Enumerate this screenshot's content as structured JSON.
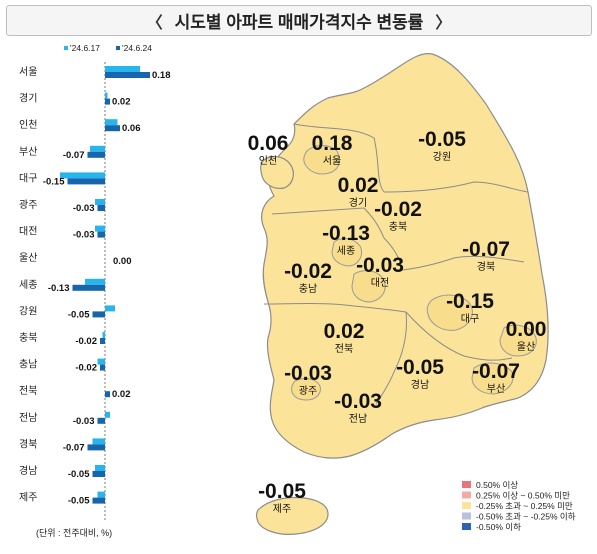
{
  "title": "시도별 아파트 매매가격지수 변동률",
  "icons": {
    "left": "chevron-left-icon",
    "right": "chevron-right-icon"
  },
  "colors": {
    "prev_week": "#28b4ec",
    "this_week": "#1766ad",
    "map_fill": "#fbe39a",
    "legend_ge_050": "#e8757b",
    "legend_025_050": "#f4a9a2",
    "legend_neutral": "#fbe39a",
    "legend_neg_025_050": "#b9c2dc",
    "legend_le_neg050": "#2f62b4"
  },
  "chart_data": {
    "type": "bar",
    "orientation": "horizontal",
    "categories": [
      "서울",
      "경기",
      "인천",
      "부산",
      "대구",
      "광주",
      "대전",
      "울산",
      "세종",
      "강원",
      "충북",
      "충남",
      "전북",
      "전남",
      "경북",
      "경남",
      "제주"
    ],
    "series": [
      {
        "name": "'24.6.17",
        "values": [
          0.14,
          0.01,
          0.05,
          -0.06,
          -0.18,
          -0.04,
          -0.04,
          0.0,
          -0.08,
          0.04,
          -0.01,
          -0.03,
          0.0,
          0.02,
          -0.05,
          -0.04,
          -0.03
        ]
      },
      {
        "name": "'24.6.24",
        "values": [
          0.18,
          0.02,
          0.06,
          -0.07,
          -0.15,
          -0.03,
          -0.03,
          0.0,
          -0.13,
          -0.05,
          -0.02,
          -0.02,
          0.02,
          -0.03,
          -0.07,
          -0.05,
          -0.05
        ]
      }
    ],
    "value_labels": [
      "0.18",
      "0.02",
      "0.06",
      "-0.07",
      "-0.15",
      "-0.03",
      "-0.03",
      "0.00",
      "-0.13",
      "-0.05",
      "-0.02",
      "-0.02",
      "0.02",
      "-0.03",
      "-0.07",
      "-0.05",
      "-0.05"
    ],
    "xlim": [
      -0.2,
      0.2
    ],
    "unit_note": "(단위 : 전주대비, %)"
  },
  "map": {
    "regions": [
      {
        "name": "인천",
        "value": "0.06"
      },
      {
        "name": "서울",
        "value": "0.18"
      },
      {
        "name": "강원",
        "value": "-0.05"
      },
      {
        "name": "경기",
        "value": "0.02"
      },
      {
        "name": "충북",
        "value": "-0.02"
      },
      {
        "name": "세종",
        "value": "-0.13"
      },
      {
        "name": "대전",
        "value": "-0.03"
      },
      {
        "name": "충남",
        "value": "-0.02"
      },
      {
        "name": "경북",
        "value": "-0.07"
      },
      {
        "name": "대구",
        "value": "-0.15"
      },
      {
        "name": "울산",
        "value": "0.00"
      },
      {
        "name": "전북",
        "value": "0.02"
      },
      {
        "name": "광주",
        "value": "-0.03"
      },
      {
        "name": "경남",
        "value": "-0.05"
      },
      {
        "name": "부산",
        "value": "-0.07"
      },
      {
        "name": "전남",
        "value": "-0.03"
      },
      {
        "name": "제주",
        "value": "-0.05"
      }
    ],
    "legend": [
      {
        "label": "0.50% 이상",
        "color": "#e8757b"
      },
      {
        "label": "0.25% 이상 ~ 0.50% 미만",
        "color": "#f4a9a2"
      },
      {
        "label": "-0.25% 초과 ~ 0.25% 미만",
        "color": "#fbe39a"
      },
      {
        "label": "-0.50% 초과 ~ -0.25% 이하",
        "color": "#b9c2dc"
      },
      {
        "label": "-0.50% 이하",
        "color": "#2f62b4"
      }
    ]
  }
}
